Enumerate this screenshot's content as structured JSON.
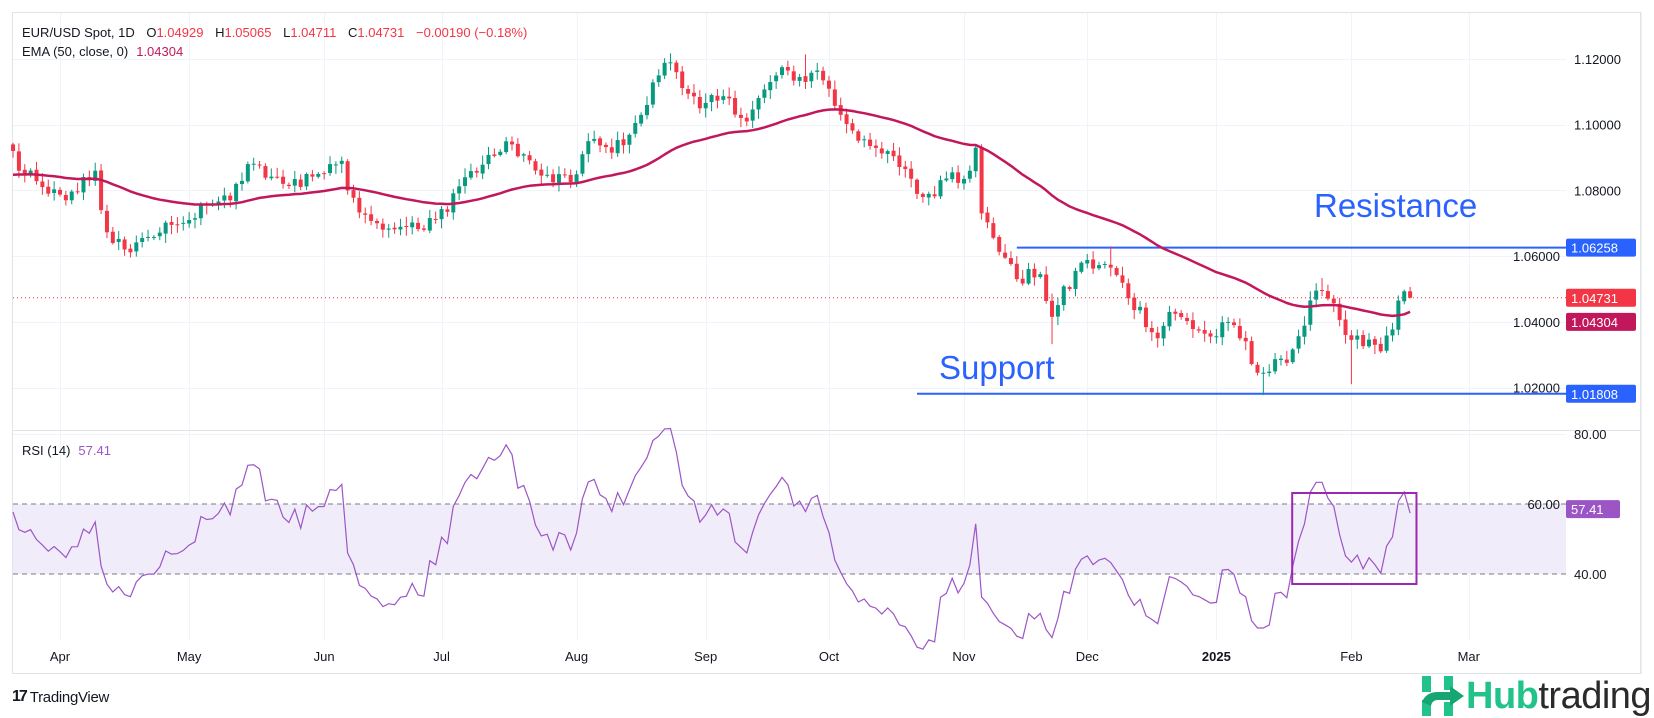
{
  "header": {
    "symbol": "EUR/USD Spot, 1D",
    "o_label": "O",
    "o": "1.04929",
    "h_label": "H",
    "h": "1.05065",
    "l_label": "L",
    "l": "1.04711",
    "c_label": "C",
    "c": "1.04731",
    "change": "−0.00190 (−0.18%)",
    "ema_label": "EMA (50, close, 0)",
    "ema_value": "1.04304"
  },
  "rsi_header": {
    "label": "RSI (14)",
    "value": "57.41"
  },
  "colors": {
    "up": "#089981",
    "down": "#f23645",
    "ema": "#c2185b",
    "rsi": "#9c55c5",
    "level": "#2962ff",
    "rsi_band": "#f1ecf9",
    "box": "#9c27b0"
  },
  "chart_data": {
    "type": "candlestick",
    "title": "EUR/USD Spot, 1D",
    "price_axis": {
      "ticks": [
        "1.12000",
        "1.10000",
        "1.08000",
        "1.06000",
        "1.04000",
        "1.02000"
      ],
      "range": [
        1.005,
        1.126
      ]
    },
    "rsi_axis": {
      "ticks": [
        "80.00",
        "60.00",
        "40.00"
      ],
      "band": [
        40,
        60
      ],
      "range": [
        20,
        82
      ]
    },
    "x_labels": [
      {
        "date": "2024-04-01",
        "label": "Apr"
      },
      {
        "date": "2024-05-01",
        "label": "May"
      },
      {
        "date": "2024-06-03",
        "label": "Jun"
      },
      {
        "date": "2024-07-01",
        "label": "Jul"
      },
      {
        "date": "2024-08-01",
        "label": "Aug"
      },
      {
        "date": "2024-09-02",
        "label": "Sep"
      },
      {
        "date": "2024-10-01",
        "label": "Oct"
      },
      {
        "date": "2024-11-01",
        "label": "Nov"
      },
      {
        "date": "2024-12-02",
        "label": "Dec"
      },
      {
        "date": "2025-01-01",
        "label": "2025",
        "bold": true
      },
      {
        "date": "2025-02-03",
        "label": "Feb"
      },
      {
        "date": "2025-03-03",
        "label": "Mar"
      }
    ],
    "first_date": "2024-03-20",
    "last_date": "2025-02-17",
    "close_keypoints": [
      [
        "2024-03-20",
        1.092
      ],
      [
        "2024-03-21",
        1.086
      ],
      [
        "2024-03-28",
        1.079
      ],
      [
        "2024-04-02",
        1.077
      ],
      [
        "2024-04-09",
        1.086
      ],
      [
        "2024-04-10",
        1.074
      ],
      [
        "2024-04-12",
        1.064
      ],
      [
        "2024-04-16",
        1.062
      ],
      [
        "2024-04-19",
        1.0655
      ],
      [
        "2024-04-26",
        1.0695
      ],
      [
        "2024-05-01",
        1.071
      ],
      [
        "2024-05-03",
        1.076
      ],
      [
        "2024-05-10",
        1.077
      ],
      [
        "2024-05-15",
        1.088
      ],
      [
        "2024-05-23",
        1.082
      ],
      [
        "2024-05-31",
        1.085
      ],
      [
        "2024-06-04",
        1.088
      ],
      [
        "2024-06-06",
        1.089
      ],
      [
        "2024-06-07",
        1.08
      ],
      [
        "2024-06-14",
        1.07
      ],
      [
        "2024-06-21",
        1.069
      ],
      [
        "2024-06-26",
        1.068
      ],
      [
        "2024-06-28",
        1.071
      ],
      [
        "2024-07-05",
        1.084
      ],
      [
        "2024-07-12",
        1.0905
      ],
      [
        "2024-07-17",
        1.094
      ],
      [
        "2024-07-24",
        1.0845
      ],
      [
        "2024-07-31",
        1.0825
      ],
      [
        "2024-08-02",
        1.091
      ],
      [
        "2024-08-05",
        1.095
      ],
      [
        "2024-08-09",
        1.0915
      ],
      [
        "2024-08-16",
        1.103
      ],
      [
        "2024-08-21",
        1.115
      ],
      [
        "2024-08-23",
        1.119
      ],
      [
        "2024-08-26",
        1.116
      ],
      [
        "2024-08-30",
        1.105
      ],
      [
        "2024-09-06",
        1.108
      ],
      [
        "2024-09-11",
        1.101
      ],
      [
        "2024-09-17",
        1.113
      ],
      [
        "2024-09-20",
        1.1165
      ],
      [
        "2024-09-25",
        1.113
      ],
      [
        "2024-09-27",
        1.1165
      ],
      [
        "2024-09-30",
        1.1135
      ],
      [
        "2024-10-03",
        1.103
      ],
      [
        "2024-10-10",
        1.0935
      ],
      [
        "2024-10-18",
        1.0865
      ],
      [
        "2024-10-23",
        1.078
      ],
      [
        "2024-10-30",
        1.0855
      ],
      [
        "2024-11-01",
        1.0835
      ],
      [
        "2024-11-05",
        1.093
      ],
      [
        "2024-11-06",
        1.073
      ],
      [
        "2024-11-14",
        1.053
      ],
      [
        "2024-11-20",
        1.0545
      ],
      [
        "2024-11-22",
        1.0415
      ],
      [
        "2024-11-29",
        1.058
      ],
      [
        "2024-12-06",
        1.0565
      ],
      [
        "2024-12-18",
        1.035
      ],
      [
        "2024-12-20",
        1.043
      ],
      [
        "2024-12-31",
        1.0355
      ],
      [
        "2025-01-06",
        1.039
      ],
      [
        "2025-01-10",
        1.0245
      ],
      [
        "2025-01-13",
        1.0245
      ],
      [
        "2025-01-17",
        1.0275
      ],
      [
        "2025-01-24",
        1.0495
      ],
      [
        "2025-01-27",
        1.0495
      ],
      [
        "2025-01-31",
        1.036
      ],
      [
        "2025-02-03",
        1.0345
      ],
      [
        "2025-02-07",
        1.033
      ],
      [
        "2025-02-10",
        1.031
      ],
      [
        "2025-02-14",
        1.0493
      ],
      [
        "2025-02-17",
        1.04731
      ]
    ],
    "low_overrides": {
      "2024-11-22": 1.0332,
      "2025-01-13": 1.0177,
      "2025-02-03": 1.021,
      "2024-04-16": 1.0601
    },
    "high_overrides": {
      "2024-12-06": 1.063,
      "2024-09-25": 1.1214,
      "2025-01-27": 1.0533
    },
    "last_bar": {
      "open": 1.04929,
      "high": 1.05065,
      "low": 1.04711,
      "close": 1.04731
    },
    "ema": {
      "period": 50,
      "last": 1.04304
    },
    "rsi": {
      "period": 14,
      "last": 57.41
    },
    "levels": [
      {
        "name": "resistance",
        "price": 1.06258,
        "label": "1.06258",
        "from": "2024-11-14"
      },
      {
        "name": "support",
        "price": 1.01808,
        "label": "1.01808",
        "from": "2024-10-22"
      }
    ],
    "price_tags": {
      "last": "1.04731",
      "ema": "1.04304",
      "rsi": "57.41"
    },
    "annotations": {
      "resistance": "Resistance",
      "support": "Support"
    },
    "rsi_box": {
      "from": "2025-01-20",
      "to": "2025-02-18"
    }
  },
  "branding": {
    "tradingview": "TradingView",
    "tv_mark": "17",
    "hub_a": "Hub",
    "hub_b": "trading"
  }
}
